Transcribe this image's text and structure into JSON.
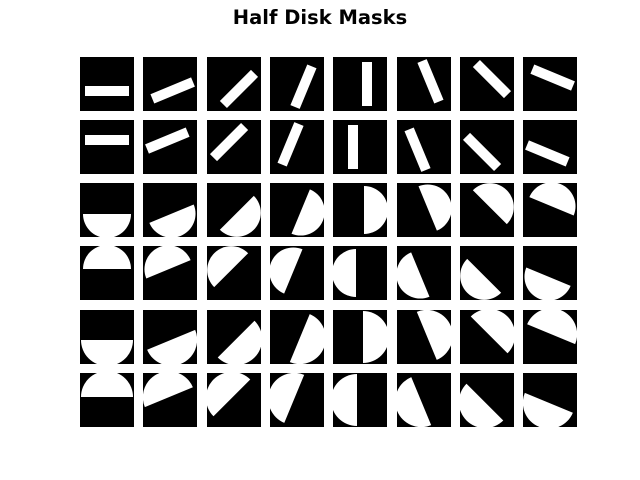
{
  "chart_data": {
    "type": "image-grid",
    "title": "Half Disk Masks",
    "rows": 6,
    "cols": 8,
    "orientations_deg": [
      0,
      22.5,
      45,
      67.5,
      90,
      112.5,
      135,
      157.5
    ],
    "row_kinds": [
      {
        "shape": "small",
        "side": "lower"
      },
      {
        "shape": "small",
        "side": "upper"
      },
      {
        "shape": "medium",
        "side": "lower"
      },
      {
        "shape": "medium",
        "side": "upper"
      },
      {
        "shape": "large",
        "side": "lower"
      },
      {
        "shape": "large",
        "side": "upper"
      }
    ],
    "colors": {
      "background": "#000000",
      "mask": "#ffffff"
    },
    "axes": "off"
  }
}
